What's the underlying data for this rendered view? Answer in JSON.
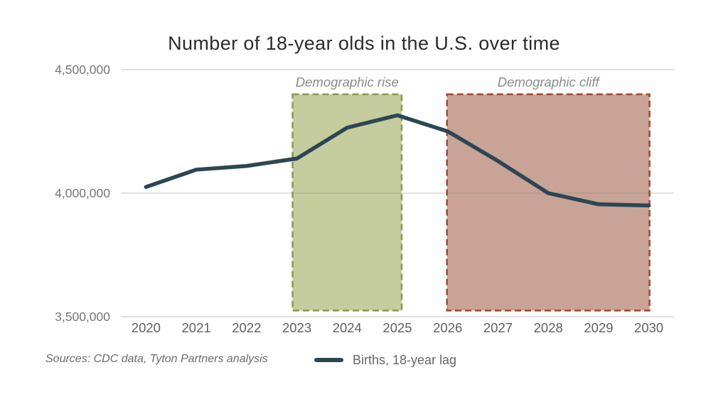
{
  "header": {
    "title": "Number of 18-year olds in the U.S. over time"
  },
  "footer": {
    "source": "Sources: CDC data, Tyton Partners analysis",
    "legend_label": "Births, 18-year lag"
  },
  "colors": {
    "line": "#2c4654",
    "grid": "rgba(130,130,130,0.32)",
    "axis_label": "#767676",
    "x_label": "#606060",
    "region_label": "#8a8a8a",
    "rise_fill": "#c5cc9e",
    "rise_border": "#8e9b51",
    "cliff_fill": "#c9a396",
    "cliff_border": "#a34a33"
  },
  "chart_data": {
    "type": "line",
    "title": "Number of 18-year olds in the U.S. over time",
    "categories": [
      "2020",
      "2021",
      "2022",
      "2023",
      "2024",
      "2025",
      "2026",
      "2027",
      "2028",
      "2029",
      "2030"
    ],
    "series": [
      {
        "name": "Births, 18-year lag",
        "color": "#2c4654",
        "values": [
          4025000,
          4095000,
          4110000,
          4140000,
          4265000,
          4315000,
          4250000,
          4130000,
          4000000,
          3955000,
          3950000
        ]
      }
    ],
    "ylim": [
      3500000,
      4500000
    ],
    "yticks": [
      {
        "value": 4500000,
        "label": "4,500,000"
      },
      {
        "value": 4000000,
        "label": "4,000,000"
      },
      {
        "value": 3500000,
        "label": "3,500,000"
      }
    ],
    "grid": "horizontal",
    "legend_position": "bottom",
    "xlabel": "",
    "ylabel": "",
    "regions": [
      {
        "id": "demographic-rise",
        "label": "Demographic rise",
        "from": "2023",
        "to": "2025",
        "pad": 6,
        "y_range": [
          3525000,
          4400000
        ],
        "fill": "#c5cc9e",
        "border": "#8e9b51"
      },
      {
        "id": "demographic-cliff",
        "label": "Demographic cliff",
        "from": "2026",
        "to": "2030",
        "pad": 1,
        "y_range": [
          3525000,
          4400000
        ],
        "fill": "#c9a396",
        "border": "#a34a33"
      }
    ]
  }
}
